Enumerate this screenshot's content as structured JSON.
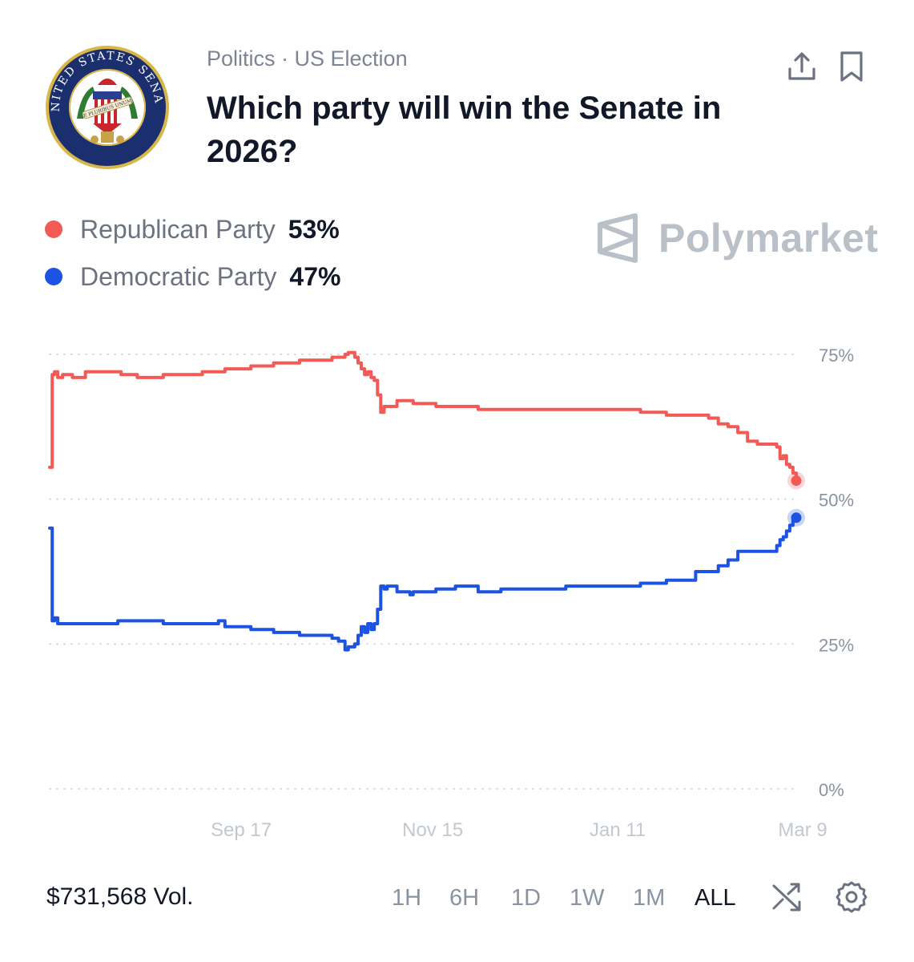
{
  "header": {
    "breadcrumb": "Politics · US Election",
    "title": "Which party will win the Senate in 2026?",
    "seal_text": "UNITED STATES SENATE",
    "seal_motto": "E PLURIBUS UNUM",
    "share_icon": "share-icon",
    "bookmark_icon": "bookmark-icon"
  },
  "watermark": {
    "text": "Polymarket",
    "icon": "polymarket-logo-icon"
  },
  "legend": [
    {
      "label": "Republican Party",
      "value": "53%",
      "color": "#f25a55"
    },
    {
      "label": "Democratic Party",
      "value": "47%",
      "color": "#1d53e3"
    }
  ],
  "footer": {
    "volume": "$731,568 Vol.",
    "ranges": [
      "1H",
      "6H",
      "1D",
      "1W",
      "1M",
      "ALL"
    ],
    "active_range": "ALL",
    "shuffle_icon": "shuffle-icon",
    "settings_icon": "gear-icon"
  },
  "chart_data": {
    "type": "line",
    "title": "",
    "xlabel": "",
    "ylabel": "",
    "ylim": [
      0,
      75
    ],
    "y_ticks": [
      75,
      50,
      25,
      0
    ],
    "y_tick_labels": [
      "75%",
      "50%",
      "25%",
      "0%"
    ],
    "x_ticks": [
      110,
      169,
      226,
      283
    ],
    "x_tick_labels": [
      "Sep 17",
      "Nov 15",
      "Jan 11",
      "Mar 9"
    ],
    "x_range": [
      51,
      281
    ],
    "grid": true,
    "series": [
      {
        "name": "Republican Party",
        "color": "#f25a55",
        "x": [
          51,
          51.8,
          52.5,
          53.5,
          55,
          58,
          62,
          72,
          73,
          75,
          76,
          78,
          80,
          85,
          86,
          97,
          98,
          103,
          105,
          110,
          113,
          118,
          120,
          125,
          128,
          137,
          138,
          140,
          142,
          143,
          145,
          146,
          147,
          148,
          149,
          150,
          151,
          152,
          153,
          154,
          155,
          158,
          162,
          163,
          170,
          176,
          183,
          190,
          195,
          200,
          210,
          220,
          225,
          230,
          233,
          238,
          241,
          246,
          250,
          254,
          257,
          260,
          263,
          266,
          269,
          272,
          275,
          276,
          277,
          278,
          279,
          280,
          281
        ],
        "y": [
          55.5,
          71.5,
          72,
          71,
          71.5,
          71,
          72,
          72,
          71.5,
          71.5,
          71.5,
          71,
          71,
          71,
          71.5,
          71.5,
          72,
          72,
          72.5,
          72.5,
          73,
          73,
          73.5,
          73.5,
          74,
          74,
          74.5,
          74.5,
          75,
          75.3,
          74.5,
          73.5,
          72.5,
          71.5,
          72,
          71,
          70.5,
          68,
          65,
          66,
          66,
          67,
          67,
          66.5,
          66,
          66,
          65.5,
          65.5,
          65.5,
          65.5,
          65.5,
          65.5,
          65.5,
          65.5,
          65,
          65,
          64.5,
          64.5,
          64.5,
          64,
          63,
          62.5,
          61.5,
          60,
          59.5,
          59.5,
          59,
          57,
          57.5,
          56,
          55.5,
          54.5,
          53.2
        ]
      },
      {
        "name": "Democratic Party",
        "color": "#1d53e3",
        "x": [
          51,
          51.8,
          52.5,
          53.5,
          55,
          58,
          62,
          72,
          73,
          75,
          76,
          78,
          80,
          85,
          86,
          97,
          98,
          103,
          105,
          110,
          113,
          118,
          120,
          125,
          128,
          137,
          138,
          140,
          142,
          143,
          145,
          146,
          147,
          148,
          149,
          150,
          151,
          152,
          153,
          154,
          155,
          158,
          162,
          163,
          170,
          176,
          183,
          190,
          195,
          200,
          210,
          220,
          225,
          230,
          233,
          238,
          241,
          246,
          250,
          254,
          257,
          260,
          263,
          266,
          269,
          272,
          275,
          276,
          277,
          278,
          279,
          280,
          281
        ],
        "y": [
          45,
          29,
          29.5,
          28.5,
          28.5,
          28.5,
          28.5,
          29,
          29,
          29,
          29,
          29,
          29,
          29,
          28.5,
          28.5,
          28.5,
          29,
          28,
          28,
          27.5,
          27.5,
          27,
          27,
          26.5,
          26.5,
          26,
          25.5,
          24,
          24.5,
          25,
          26.5,
          28,
          27,
          28.5,
          27.5,
          28.5,
          31,
          35,
          34.5,
          35,
          34,
          33.5,
          34,
          34.5,
          35,
          34,
          34.5,
          34.5,
          34.5,
          35,
          35,
          35,
          35,
          35.5,
          35.5,
          36,
          36,
          37.5,
          37.5,
          38.5,
          39.5,
          41,
          41,
          41,
          41,
          42,
          43,
          43.5,
          44.5,
          45.5,
          46.5,
          46.8
        ]
      }
    ]
  }
}
